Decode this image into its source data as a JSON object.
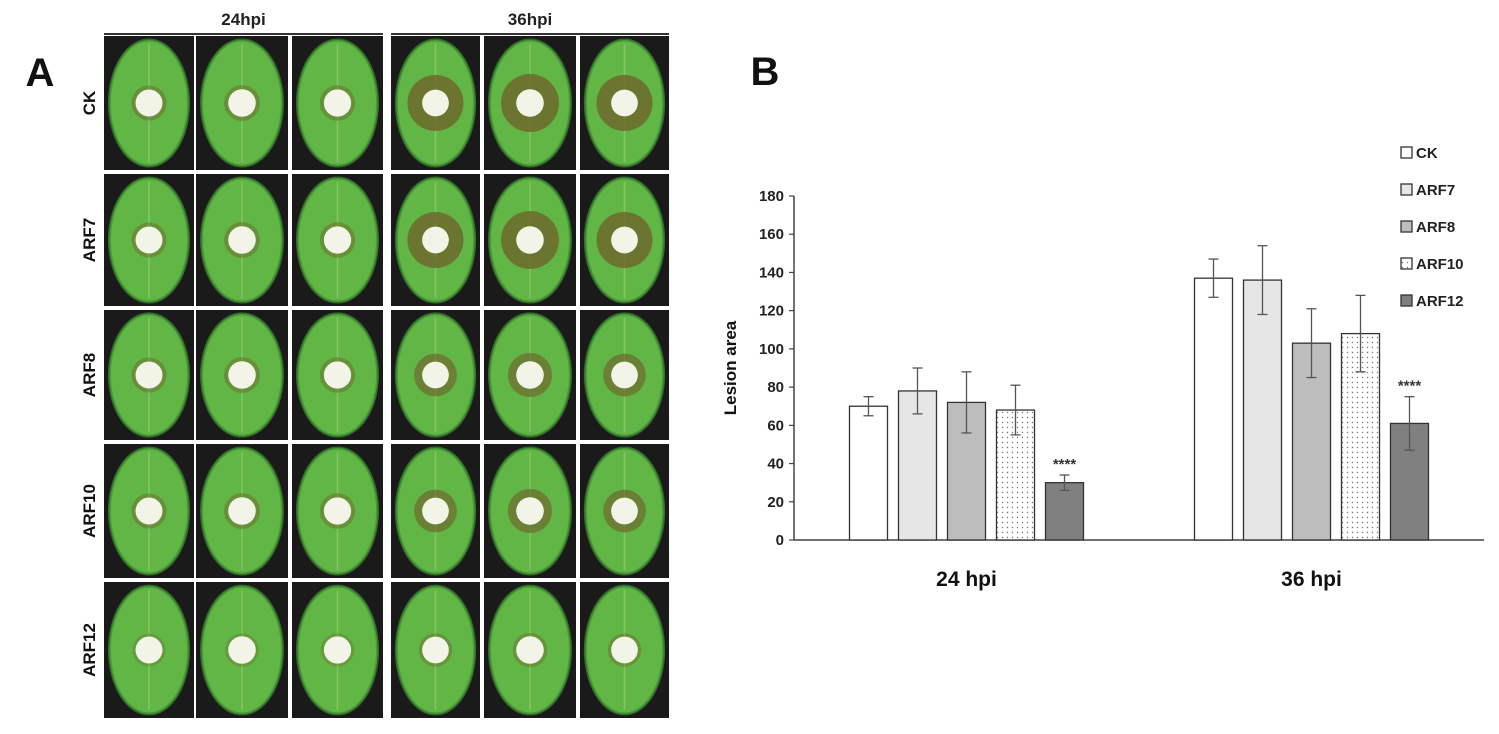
{
  "panel_a": {
    "label": "A",
    "column_headers": [
      "24hpi",
      "36hpi"
    ],
    "row_labels": [
      "CK",
      "ARF7",
      "ARF8",
      "ARF10",
      "ARF12"
    ],
    "colors": {
      "photo_bg": "#1a1a1a",
      "leaf": "#62b646",
      "leaf_dark": "#3f8f32",
      "disc": "#f1f4e6",
      "halo": "#6e6a2c"
    }
  },
  "panel_b": {
    "label": "B"
  },
  "chart_data": {
    "type": "bar",
    "categories": [
      "24 hpi",
      "36 hpi"
    ],
    "ylabel": "Lesion area",
    "xlabel": "",
    "ylim": [
      0,
      180
    ],
    "yticks": [
      0,
      20,
      40,
      60,
      80,
      100,
      120,
      140,
      160,
      180
    ],
    "grid": false,
    "legend_position": "top-right",
    "series": [
      {
        "name": "CK",
        "values": [
          70,
          137
        ],
        "errors": [
          5,
          10
        ],
        "color": "#ffffff",
        "pattern": "none",
        "labels": [
          "",
          ""
        ]
      },
      {
        "name": "ARF7",
        "values": [
          78,
          136
        ],
        "errors": [
          12,
          18
        ],
        "color": "#e6e6e6",
        "pattern": "none",
        "labels": [
          "",
          ""
        ]
      },
      {
        "name": "ARF8",
        "values": [
          72,
          103
        ],
        "errors": [
          16,
          18
        ],
        "color": "#bdbdbd",
        "pattern": "none",
        "labels": [
          "",
          ""
        ]
      },
      {
        "name": "ARF10",
        "values": [
          68,
          108
        ],
        "errors": [
          13,
          20
        ],
        "color": "#ffffff",
        "pattern": "dots",
        "labels": [
          "",
          ""
        ]
      },
      {
        "name": "ARF12",
        "values": [
          30,
          61
        ],
        "errors": [
          4,
          14
        ],
        "color": "#808080",
        "pattern": "none",
        "labels": [
          "****",
          "****"
        ]
      }
    ]
  }
}
